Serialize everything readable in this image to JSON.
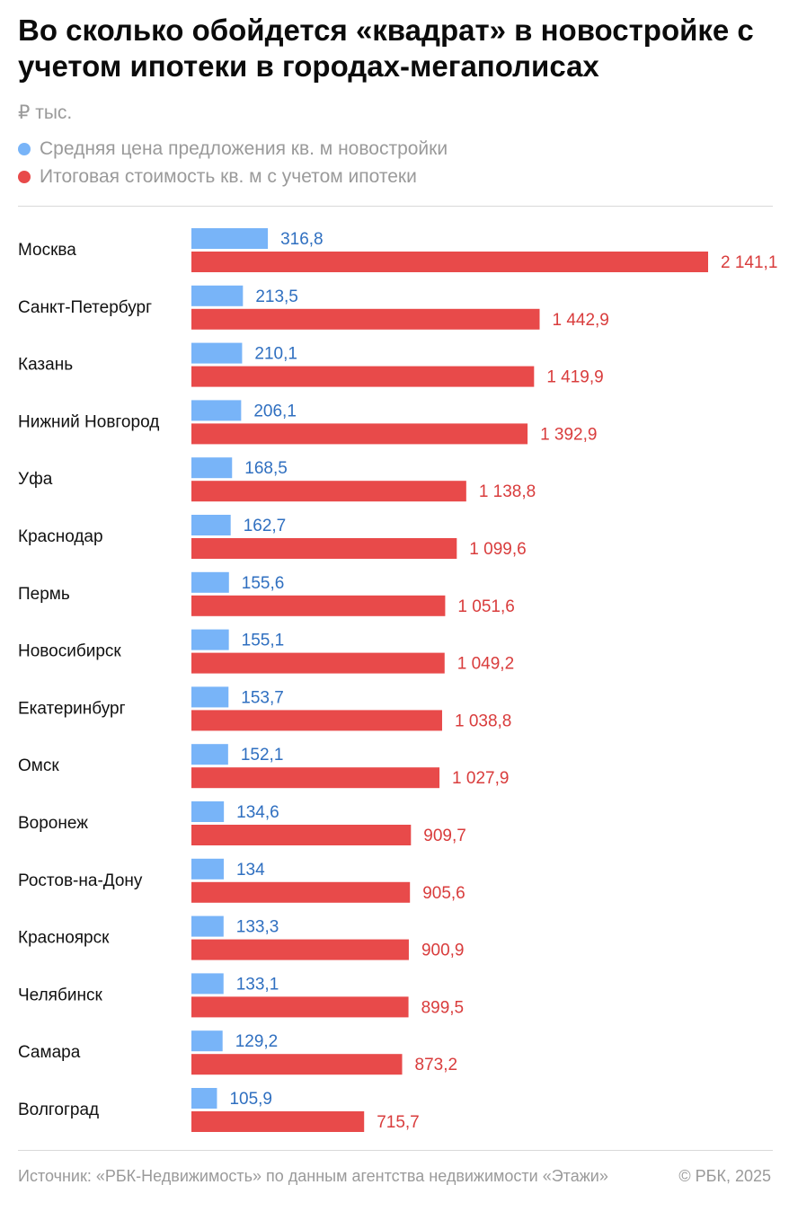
{
  "title": "Во сколько обойдется «квадрат» в новостройке с учетом ипотеки в городах-мегаполисах",
  "unit": "₽ тыс.",
  "colors": {
    "blue": "#78b4f8",
    "red": "#e84a4a",
    "blue_text": "#2f6fc0",
    "red_text": "#d93c3c"
  },
  "legend": [
    {
      "label": "Средняя цена предложения кв. м новостройки",
      "color": "#78b4f8"
    },
    {
      "label": "Итоговая стоимость кв. м с учетом ипотеки",
      "color": "#e84a4a"
    }
  ],
  "chart_data": {
    "type": "bar",
    "orientation": "horizontal",
    "categories": [
      "Москва",
      "Санкт-Петербург",
      "Казань",
      "Нижний Новгород",
      "Уфа",
      "Краснодар",
      "Пермь",
      "Новосибирск",
      "Екатеринбург",
      "Омск",
      "Воронеж",
      "Ростов-на-Дону",
      "Красноярск",
      "Челябинск",
      "Самара",
      "Волгоград"
    ],
    "series": [
      {
        "name": "Средняя цена предложения кв. м новостройки",
        "values": [
          316.8,
          213.5,
          210.1,
          206.1,
          168.5,
          162.7,
          155.6,
          155.1,
          153.7,
          152.1,
          134.6,
          134,
          133.3,
          133.1,
          129.2,
          105.9
        ],
        "labels": [
          "316,8",
          "213,5",
          "210,1",
          "206,1",
          "168,5",
          "162,7",
          "155,6",
          "155,1",
          "153,7",
          "152,1",
          "134,6",
          "134",
          "133,3",
          "133,1",
          "129,2",
          "105,9"
        ]
      },
      {
        "name": "Итоговая стоимость кв. м с учетом ипотеки",
        "values": [
          2141.1,
          1442.9,
          1419.9,
          1392.9,
          1138.8,
          1099.6,
          1051.6,
          1049.2,
          1038.8,
          1027.9,
          909.7,
          905.6,
          900.9,
          899.5,
          873.2,
          715.7
        ],
        "labels": [
          "2 141,1",
          "1 442,9",
          "1 419,9",
          "1 392,9",
          "1 138,8",
          "1 099,6",
          "1 051,6",
          "1 049,2",
          "1 038,8",
          "1 027,9",
          "909,7",
          "905,6",
          "900,9",
          "899,5",
          "873,2",
          "715,7"
        ]
      }
    ],
    "xlim": [
      0,
      2141.1
    ],
    "grid": false,
    "legend_position": "top-left"
  },
  "footer": {
    "source": "Источник: «РБК-Недвижимость» по данным агентства недвижимости «Этажи»",
    "copyright": "© РБК, 2025"
  }
}
